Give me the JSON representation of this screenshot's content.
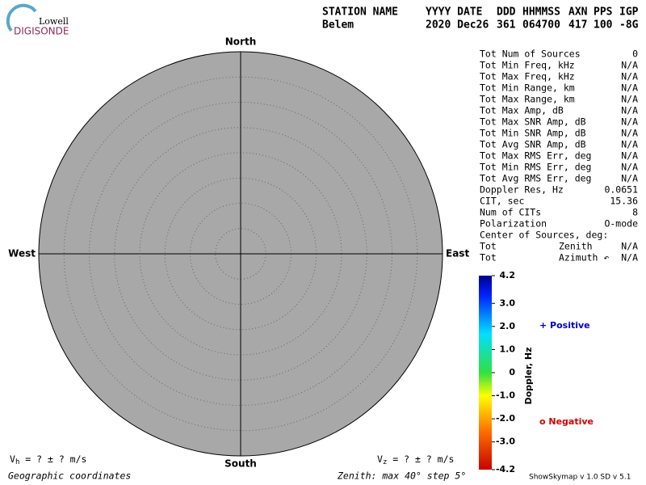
{
  "logo": {
    "top": "Lowell",
    "bottom": "DIGISONDE"
  },
  "header": {
    "columns": [
      {
        "label": "STATION NAME",
        "value": "Belem"
      },
      {
        "label": "YYYY DATE",
        "value": "2020 Dec26"
      },
      {
        "label": "DDD",
        "value": "361"
      },
      {
        "label": "HHMMSS",
        "value": "064700"
      },
      {
        "label": "AXN",
        "value": "417"
      },
      {
        "label": "PPS",
        "value": "100"
      },
      {
        "label": "IGP",
        "value": "-8G"
      }
    ]
  },
  "directions": {
    "north": "North",
    "south": "South",
    "east": "East",
    "west": "West"
  },
  "stats": {
    "rows": [
      {
        "label": "Tot Num of Sources",
        "value": "0",
        "muted": true
      },
      {
        "label": "Tot Min Freq, kHz",
        "value": "N/A",
        "muted": true
      },
      {
        "label": "Tot Max Freq, kHz",
        "value": "N/A",
        "muted": true
      },
      {
        "label": "Tot Min Range, km",
        "value": "N/A",
        "muted": true
      },
      {
        "label": "Tot Max Range, km",
        "value": "N/A",
        "muted": true
      },
      {
        "label": "Tot Max Amp, dB",
        "value": "N/A",
        "muted": true
      },
      {
        "label": "Tot Max SNR Amp, dB",
        "value": "N/A",
        "muted": true
      },
      {
        "label": "Tot Min SNR Amp, dB",
        "value": "N/A",
        "muted": true
      },
      {
        "label": "Tot Avg SNR Amp, dB",
        "value": "N/A",
        "muted": true
      },
      {
        "label": "Tot Max RMS Err, deg",
        "value": "N/A",
        "muted": true
      },
      {
        "label": "Tot Min RMS Err, deg",
        "value": "N/A",
        "muted": true
      },
      {
        "label": "Tot Avg RMS Err, deg",
        "value": "N/A",
        "muted": true
      },
      {
        "label": "Doppler Res, Hz",
        "value": "0.0651",
        "muted": false
      },
      {
        "label": "CIT, sec",
        "value": "15.36",
        "muted": false
      },
      {
        "label": "Num of CITs",
        "value": "8",
        "muted": false
      },
      {
        "label": "Polarization",
        "value": "O-mode",
        "muted": false
      },
      {
        "label": "Center of Sources, deg:"
      },
      {
        "label": "Tot",
        "sublabel": "Zenith",
        "value": "N/A",
        "muted": true
      },
      {
        "label": "Tot",
        "sublabel": "Azimuth ↶",
        "value": "N/A",
        "muted": true
      }
    ]
  },
  "colorbar": {
    "title": "Doppler, Hz",
    "range": [
      -4.2,
      4.2
    ],
    "ticks": [
      4.2,
      {
        "value": 3,
        "label": "3.0"
      },
      {
        "value": 2,
        "label": "2.0"
      },
      {
        "value": 1,
        "label": "1.0"
      },
      0,
      {
        "value": -1,
        "label": "-1.0"
      },
      {
        "value": -2,
        "label": "-2.0"
      },
      {
        "value": -3,
        "label": "-3.0"
      },
      -4.2
    ]
  },
  "legend": {
    "positive": "+ Positive",
    "negative": "o Negative"
  },
  "footer": {
    "vh": {
      "symbol": "V",
      "sub": "h",
      "text": " =  ? ±  ? m/s"
    },
    "vz": {
      "symbol": "V",
      "sub": "z",
      "text": " =  ? ±  ? m/s"
    },
    "coords": "Geographic coordinates",
    "zenith": "Zenith: max 40°  step 5°",
    "version": "ShowSkymap v 1.0  SD v 5.1"
  }
}
